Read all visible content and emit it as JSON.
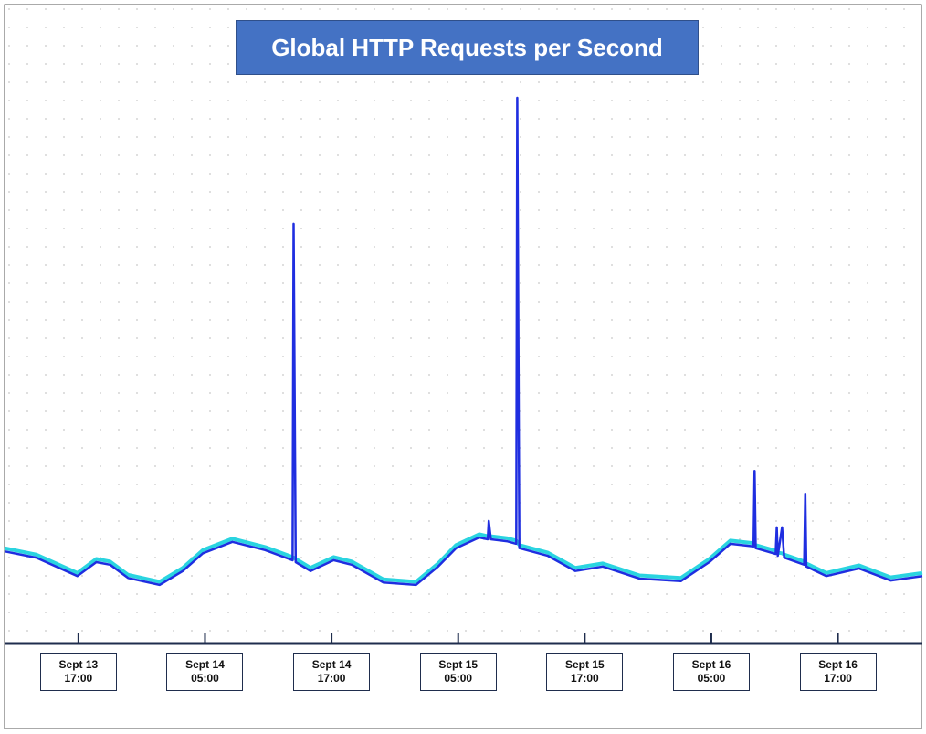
{
  "chart_data": {
    "type": "line",
    "title": "Global HTTP Requests per Second",
    "x": [
      0,
      3.0,
      6.9,
      8.7,
      10.0,
      11.7,
      14.7,
      16.9,
      18.8,
      21.6,
      24.7,
      27.3,
      27.4,
      27.6,
      29.0,
      31.2,
      32.9,
      35.9,
      39.0,
      41.1,
      42.8,
      45.0,
      45.8,
      45.9,
      46.1,
      47.6,
      48.5,
      48.6,
      48.8,
      51.5,
      54.1,
      56.7,
      60.2,
      64.1,
      66.8,
      68.8,
      71.0,
      71.1,
      71.2,
      73.1,
      73.2,
      73.3,
      73.7,
      73.9,
      75.8,
      75.9,
      76.0,
      77.9,
      81.0,
      84.0,
      87.0
    ],
    "series": [
      {
        "color": "#2ad4e0",
        "values": [
          14.9,
          13.9,
          11.0,
          13.2,
          12.8,
          10.7,
          9.6,
          11.8,
          14.6,
          16.4,
          15.1,
          13.5,
          13.4,
          13.2,
          11.8,
          13.5,
          12.8,
          10.0,
          9.6,
          12.5,
          15.4,
          17.1,
          16.8,
          16.8,
          16.8,
          16.5,
          16.1,
          15.8,
          15.4,
          14.2,
          11.8,
          12.5,
          10.6,
          10.2,
          13.2,
          16.1,
          15.7,
          15.6,
          15.4,
          14.5,
          14.4,
          14.2,
          14.1,
          13.9,
          12.8,
          12.7,
          12.5,
          11.0,
          12.2,
          10.3,
          11.0
        ]
      },
      {
        "color": "#1f2ee0",
        "values": [
          14.4,
          13.4,
          10.5,
          12.7,
          12.3,
          10.2,
          9.1,
          11.3,
          14.1,
          15.9,
          14.6,
          13.0,
          66.1,
          12.7,
          11.3,
          13.0,
          12.3,
          9.5,
          9.1,
          12.0,
          14.9,
          16.6,
          16.3,
          19.2,
          16.3,
          16.0,
          15.6,
          86.0,
          14.9,
          13.7,
          11.3,
          12.0,
          10.1,
          9.7,
          12.7,
          15.6,
          15.2,
          27.1,
          14.9,
          14.0,
          18.2,
          13.7,
          18.2,
          13.4,
          12.3,
          23.5,
          12.0,
          10.5,
          11.7,
          9.8,
          10.5
        ]
      }
    ],
    "xlim": [
      0,
      87
    ],
    "ylim": [
      0,
      100
    ],
    "xticks": [
      {
        "value": 7,
        "label": "Sept 13 17:00"
      },
      {
        "value": 19,
        "label": "Sept 14 05:00"
      },
      {
        "value": 31,
        "label": "Sept 14 17:00"
      },
      {
        "value": 43,
        "label": "Sept 15 05:00"
      },
      {
        "value": 55,
        "label": "Sept 15 17:00"
      },
      {
        "value": 67,
        "label": "Sept 16 05:00"
      },
      {
        "value": 79,
        "label": "Sept 16 17:00"
      }
    ],
    "grid": true
  }
}
